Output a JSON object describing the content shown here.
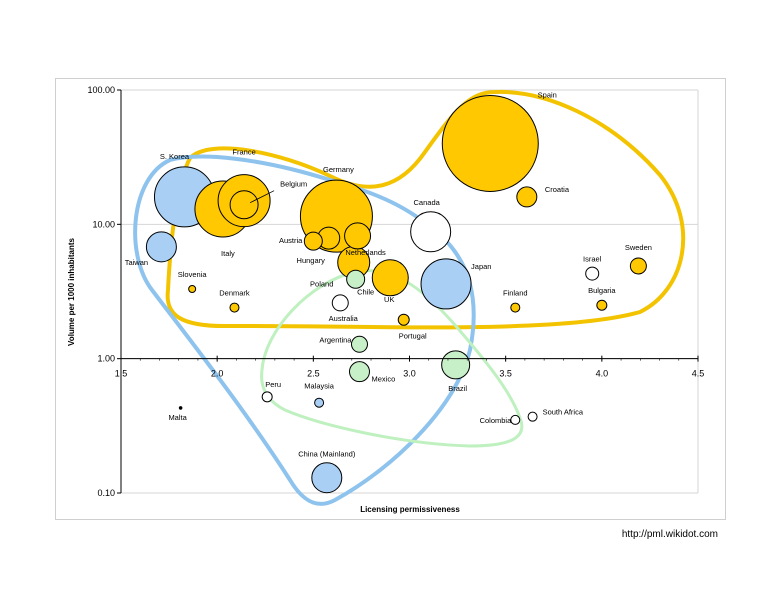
{
  "chart_data": {
    "type": "scatter",
    "subtype": "bubble",
    "xlabel": "Licensing permissiveness",
    "ylabel": "Volume per 1000 inhabitants",
    "xlim": [
      1.5,
      4.5
    ],
    "ylim": [
      0.1,
      100
    ],
    "yscale": "log",
    "x_ticks": [
      "1.5",
      "2.0",
      "2.5",
      "3.0",
      "3.5",
      "4.0",
      "4.5"
    ],
    "y_ticks": [
      "100.00",
      "10.00",
      "1.00",
      "0.10"
    ],
    "grid": "horizontal",
    "colors": {
      "gold": "#FFC800",
      "blue": "#A9CFF5",
      "green": "#C8F0C8",
      "white": "#FFFFFF",
      "outline": "#000000",
      "gold_group": "#F3C300",
      "blue_group": "#8EC3EE",
      "green_group": "#BFF0BF"
    },
    "points": [
      {
        "label": "Spain",
        "x": 3.42,
        "y": 40,
        "r": 48,
        "color": "gold"
      },
      {
        "label": "Croatia",
        "x": 3.61,
        "y": 16,
        "r": 10,
        "color": "gold"
      },
      {
        "label": "S. Korea",
        "x": 1.83,
        "y": 16,
        "r": 30,
        "color": "blue"
      },
      {
        "label": "France",
        "x": 2.14,
        "y": 15,
        "r": 26,
        "color": "gold"
      },
      {
        "label": "Italy",
        "x": 2.03,
        "y": 13,
        "r": 28,
        "color": "gold"
      },
      {
        "label": "Belgium",
        "x": 2.14,
        "y": 14,
        "r": 14,
        "color": "gold"
      },
      {
        "label": "Germany",
        "x": 2.62,
        "y": 11.5,
        "r": 36,
        "color": "gold"
      },
      {
        "label": "Canada",
        "x": 3.11,
        "y": 8.8,
        "r": 20,
        "color": "white"
      },
      {
        "label": "Austria",
        "x": 2.5,
        "y": 7.5,
        "r": 9,
        "color": "gold"
      },
      {
        "label": "Hungary",
        "x": 2.58,
        "y": 7.9,
        "r": 11,
        "color": "gold"
      },
      {
        "label": "Netherlands",
        "x": 2.73,
        "y": 8.2,
        "r": 13,
        "color": "gold"
      },
      {
        "label": "Taiwan",
        "x": 1.71,
        "y": 6.8,
        "r": 15,
        "color": "blue"
      },
      {
        "label": "Poland",
        "x": 2.71,
        "y": 5.2,
        "r": 16,
        "color": "gold"
      },
      {
        "label": "UK",
        "x": 2.9,
        "y": 4.0,
        "r": 18,
        "color": "gold"
      },
      {
        "label": "Japan",
        "x": 3.19,
        "y": 3.6,
        "r": 25,
        "color": "blue"
      },
      {
        "label": "Chile",
        "x": 2.72,
        "y": 3.9,
        "r": 9,
        "color": "green"
      },
      {
        "label": "Australia",
        "x": 2.64,
        "y": 2.6,
        "r": 8,
        "color": "white"
      },
      {
        "label": "Slovenia",
        "x": 1.87,
        "y": 3.3,
        "r": 3.5,
        "color": "gold"
      },
      {
        "label": "Denmark",
        "x": 2.09,
        "y": 2.4,
        "r": 4.5,
        "color": "gold"
      },
      {
        "label": "Portugal",
        "x": 2.97,
        "y": 1.95,
        "r": 5.5,
        "color": "gold"
      },
      {
        "label": "Israel",
        "x": 3.95,
        "y": 4.3,
        "r": 6.5,
        "color": "white"
      },
      {
        "label": "Sweden",
        "x": 4.19,
        "y": 4.9,
        "r": 8,
        "color": "gold"
      },
      {
        "label": "Finland",
        "x": 3.55,
        "y": 2.4,
        "r": 4.5,
        "color": "gold"
      },
      {
        "label": "Bulgaria",
        "x": 4.0,
        "y": 2.5,
        "r": 5,
        "color": "gold"
      },
      {
        "label": "Argentina",
        "x": 2.74,
        "y": 1.28,
        "r": 8,
        "color": "green"
      },
      {
        "label": "Mexico",
        "x": 2.74,
        "y": 0.8,
        "r": 10,
        "color": "green"
      },
      {
        "label": "Brazil",
        "x": 3.24,
        "y": 0.9,
        "r": 14,
        "color": "green"
      },
      {
        "label": "Peru",
        "x": 2.26,
        "y": 0.52,
        "r": 5,
        "color": "white"
      },
      {
        "label": "Malaysia",
        "x": 2.53,
        "y": 0.47,
        "r": 4.5,
        "color": "blue"
      },
      {
        "label": "Malta",
        "x": 1.81,
        "y": 0.43,
        "r": 1.3,
        "color": "black"
      },
      {
        "label": "Colombia",
        "x": 3.55,
        "y": 0.35,
        "r": 4.5,
        "color": "white"
      },
      {
        "label": "South Africa",
        "x": 3.64,
        "y": 0.37,
        "r": 4.5,
        "color": "white"
      },
      {
        "label": "China (Mainland)",
        "x": 2.57,
        "y": 0.13,
        "r": 15,
        "color": "blue"
      }
    ]
  },
  "footer": {
    "source": "http://pml.wikidot.com"
  }
}
